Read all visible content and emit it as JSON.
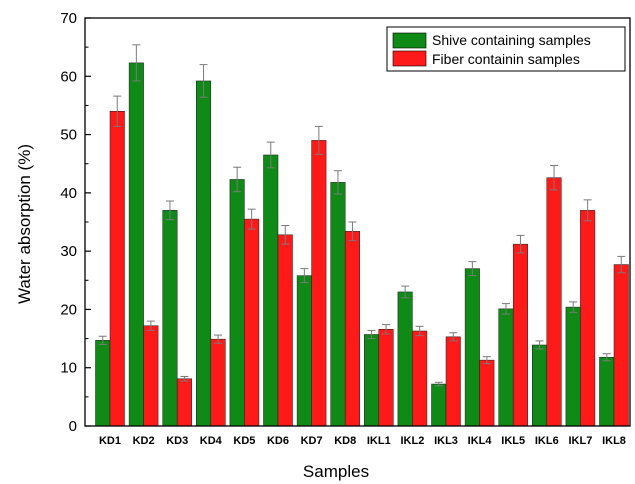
{
  "chart_data": {
    "type": "bar",
    "xlabel": "Samples",
    "ylabel": "Water absorption (%)",
    "ylim": [
      0,
      70
    ],
    "yticks": [
      0,
      10,
      20,
      30,
      40,
      50,
      60,
      70
    ],
    "grid": false,
    "legend_position": "top-right",
    "categories": [
      "KD1",
      "KD2",
      "KD3",
      "KD4",
      "KD5",
      "KD6",
      "KD7",
      "KD8",
      "IKL1",
      "IKL2",
      "IKL3",
      "IKL4",
      "IKL5",
      "IKL6",
      "IKL7",
      "IKL8"
    ],
    "series": [
      {
        "name": "Shive containing samples",
        "color": "#0f8a16",
        "values": [
          14.7,
          62.3,
          37.0,
          59.2,
          42.3,
          46.5,
          25.8,
          41.8,
          15.7,
          23.0,
          7.2,
          27.0,
          20.1,
          13.9,
          20.4,
          11.8
        ],
        "errors": [
          0.7,
          3.1,
          1.6,
          2.8,
          2.1,
          2.2,
          1.2,
          2.0,
          0.7,
          1.0,
          0.3,
          1.2,
          0.9,
          0.7,
          0.9,
          0.6
        ]
      },
      {
        "name": "Fiber containin samples",
        "color": "#ff1a1a",
        "values": [
          54.0,
          17.2,
          8.1,
          14.9,
          35.5,
          32.8,
          49.0,
          33.4,
          16.6,
          16.3,
          15.3,
          11.3,
          31.2,
          42.6,
          37.0,
          27.7
        ],
        "errors": [
          2.6,
          0.8,
          0.4,
          0.7,
          1.7,
          1.6,
          2.4,
          1.6,
          0.8,
          0.8,
          0.7,
          0.6,
          1.5,
          2.1,
          1.8,
          1.4
        ]
      }
    ]
  }
}
